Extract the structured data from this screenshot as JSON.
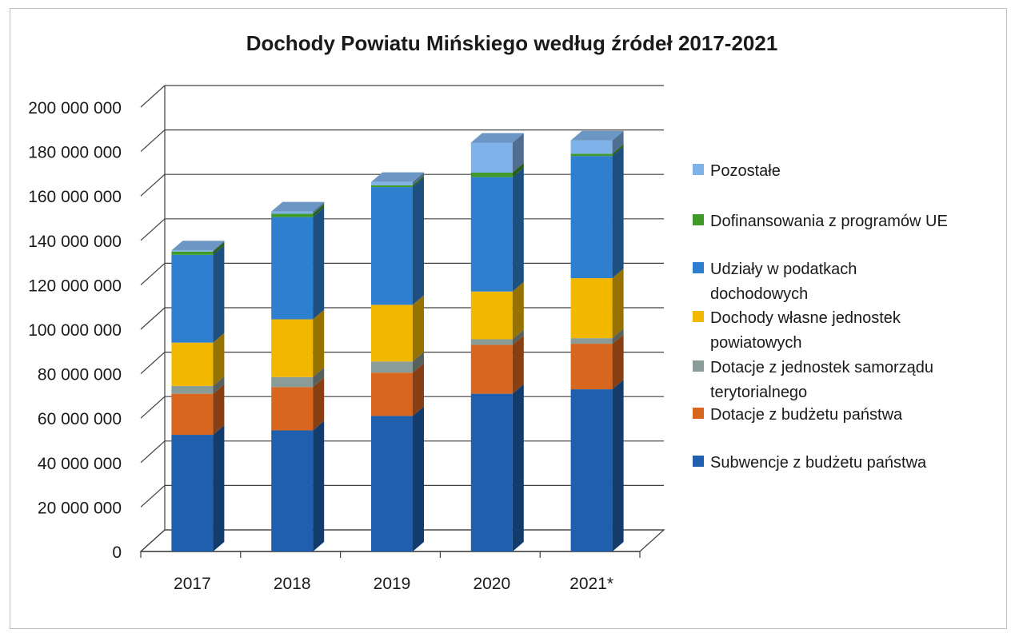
{
  "chart_data": {
    "type": "bar",
    "stacked": true,
    "three_d": true,
    "title": "Dochody Powiatu Mińskiego według źródeł 2017-2021",
    "categories": [
      "2017",
      "2018",
      "2019",
      "2020",
      "2021*"
    ],
    "ylim": [
      0,
      200000000
    ],
    "yticks": [
      0,
      20000000,
      40000000,
      60000000,
      80000000,
      100000000,
      120000000,
      140000000,
      160000000,
      180000000,
      200000000
    ],
    "ytick_labels": [
      "0",
      "20 000 000",
      "40 000 000",
      "60 000 000",
      "80 000 000",
      "100 000 000",
      "120 000 000",
      "140 000 000",
      "160 000 000",
      "180 000 000",
      "200 000 000"
    ],
    "grid": true,
    "legend_position": "right",
    "series": [
      {
        "name": "Subwencje z budżetu państwa",
        "color": "#1f5fae",
        "values": [
          52500000,
          54500000,
          61000000,
          71000000,
          73000000
        ]
      },
      {
        "name": "Dotacje z budżetu państwa",
        "color": "#d9661f",
        "values": [
          18500000,
          19500000,
          19500000,
          22000000,
          20500000
        ]
      },
      {
        "name": "Dotacje z jednostek samorządu terytorialnego",
        "color": "#8a9c98",
        "values": [
          3500000,
          4500000,
          5000000,
          2500000,
          2500000
        ]
      },
      {
        "name": "Dochody własne jednostek powiatowych",
        "color": "#f2b800",
        "values": [
          19500000,
          26000000,
          25500000,
          21500000,
          27000000
        ]
      },
      {
        "name": "Udziały w podatkach dochodowych",
        "color": "#2f7fd0",
        "values": [
          39500000,
          46000000,
          53000000,
          51500000,
          55000000
        ]
      },
      {
        "name": "Dofinansowania z programów UE",
        "color": "#3f9a2a",
        "values": [
          1500000,
          1500000,
          800000,
          2000000,
          1000000
        ]
      },
      {
        "name": "Pozostałe",
        "color": "#7fb2e8",
        "values": [
          500000,
          1000000,
          1500000,
          13500000,
          6000000
        ]
      }
    ]
  }
}
